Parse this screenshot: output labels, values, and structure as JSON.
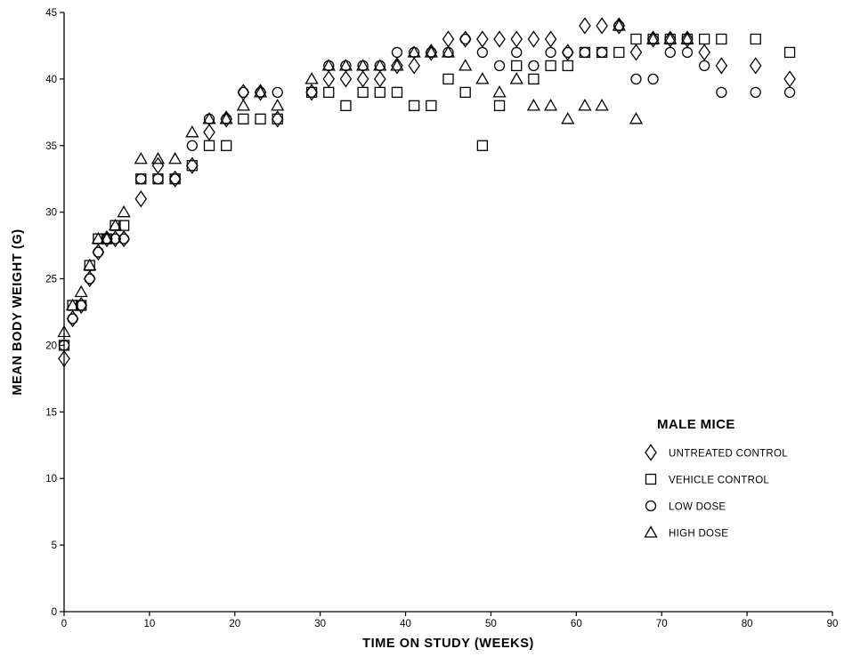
{
  "chart_data": {
    "type": "scatter",
    "title": "",
    "xlabel": "TIME ON STUDY (WEEKS)",
    "ylabel": "MEAN BODY WEIGHT (G)",
    "xlim": [
      0,
      90
    ],
    "ylim": [
      0,
      45
    ],
    "x_ticks": [
      0,
      10,
      20,
      30,
      40,
      50,
      60,
      70,
      80,
      90
    ],
    "y_ticks": [
      0,
      5,
      10,
      15,
      20,
      25,
      30,
      35,
      40,
      45
    ],
    "grid": false,
    "legend": {
      "title": "MALE MICE",
      "placement": "bottom-right"
    },
    "series": [
      {
        "name": "UNTREATED CONTROL",
        "marker": "diamond",
        "points": [
          [
            0,
            19
          ],
          [
            1,
            22
          ],
          [
            2,
            23
          ],
          [
            3,
            25
          ],
          [
            4,
            27
          ],
          [
            5,
            28
          ],
          [
            6,
            28
          ],
          [
            7,
            28
          ],
          [
            9,
            31
          ],
          [
            11,
            33.5
          ],
          [
            13,
            32.5
          ],
          [
            15,
            33.5
          ],
          [
            17,
            36
          ],
          [
            19,
            37
          ],
          [
            21,
            39
          ],
          [
            23,
            39
          ],
          [
            25,
            37
          ],
          [
            29,
            39
          ],
          [
            31,
            40
          ],
          [
            33,
            40
          ],
          [
            35,
            40
          ],
          [
            37,
            40
          ],
          [
            39,
            41
          ],
          [
            41,
            41
          ],
          [
            43,
            42
          ],
          [
            45,
            43
          ],
          [
            47,
            43
          ],
          [
            49,
            43
          ],
          [
            51,
            43
          ],
          [
            53,
            43
          ],
          [
            55,
            43
          ],
          [
            57,
            43
          ],
          [
            59,
            42
          ],
          [
            61,
            44
          ],
          [
            63,
            44
          ],
          [
            65,
            44
          ],
          [
            67,
            42
          ],
          [
            69,
            43
          ],
          [
            71,
            43
          ],
          [
            73,
            43
          ],
          [
            75,
            42
          ],
          [
            77,
            41
          ],
          [
            81,
            41
          ],
          [
            85,
            40
          ]
        ]
      },
      {
        "name": "VEHICLE CONTROL",
        "marker": "square",
        "points": [
          [
            0,
            20
          ],
          [
            1,
            23
          ],
          [
            2,
            23
          ],
          [
            3,
            26
          ],
          [
            4,
            28
          ],
          [
            5,
            28
          ],
          [
            6,
            29
          ],
          [
            7,
            29
          ],
          [
            9,
            32.5
          ],
          [
            11,
            32.5
          ],
          [
            13,
            32.5
          ],
          [
            15,
            33.5
          ],
          [
            17,
            35
          ],
          [
            19,
            35
          ],
          [
            21,
            37
          ],
          [
            23,
            37
          ],
          [
            25,
            37
          ],
          [
            29,
            39
          ],
          [
            31,
            39
          ],
          [
            33,
            38
          ],
          [
            35,
            39
          ],
          [
            37,
            39
          ],
          [
            39,
            39
          ],
          [
            41,
            38
          ],
          [
            43,
            38
          ],
          [
            45,
            40
          ],
          [
            47,
            39
          ],
          [
            49,
            35
          ],
          [
            51,
            38
          ],
          [
            53,
            41
          ],
          [
            55,
            40
          ],
          [
            57,
            41
          ],
          [
            59,
            41
          ],
          [
            61,
            42
          ],
          [
            63,
            42
          ],
          [
            65,
            42
          ],
          [
            67,
            43
          ],
          [
            69,
            43
          ],
          [
            71,
            43
          ],
          [
            73,
            43
          ],
          [
            75,
            43
          ],
          [
            77,
            43
          ],
          [
            81,
            43
          ],
          [
            85,
            42
          ]
        ]
      },
      {
        "name": "LOW DOSE",
        "marker": "circle",
        "points": [
          [
            0,
            20
          ],
          [
            1,
            22
          ],
          [
            2,
            23
          ],
          [
            3,
            25
          ],
          [
            4,
            27
          ],
          [
            5,
            28
          ],
          [
            6,
            28
          ],
          [
            7,
            28
          ],
          [
            9,
            32.5
          ],
          [
            11,
            32.5
          ],
          [
            13,
            32.5
          ],
          [
            15,
            35
          ],
          [
            17,
            37
          ],
          [
            19,
            37
          ],
          [
            21,
            39
          ],
          [
            23,
            39
          ],
          [
            25,
            39
          ],
          [
            29,
            39
          ],
          [
            31,
            41
          ],
          [
            33,
            41
          ],
          [
            35,
            41
          ],
          [
            37,
            41
          ],
          [
            39,
            42
          ],
          [
            41,
            42
          ],
          [
            43,
            42
          ],
          [
            45,
            42
          ],
          [
            47,
            43
          ],
          [
            49,
            42
          ],
          [
            51,
            41
          ],
          [
            53,
            42
          ],
          [
            55,
            41
          ],
          [
            57,
            42
          ],
          [
            59,
            42
          ],
          [
            61,
            42
          ],
          [
            63,
            42
          ],
          [
            65,
            44
          ],
          [
            67,
            40
          ],
          [
            69,
            40
          ],
          [
            71,
            42
          ],
          [
            73,
            42
          ],
          [
            75,
            41
          ],
          [
            77,
            39
          ],
          [
            81,
            39
          ],
          [
            85,
            39
          ]
        ]
      },
      {
        "name": "HIGH DOSE",
        "marker": "triangle",
        "points": [
          [
            0,
            21
          ],
          [
            1,
            23
          ],
          [
            2,
            24
          ],
          [
            3,
            26
          ],
          [
            4,
            28
          ],
          [
            5,
            28
          ],
          [
            6,
            29
          ],
          [
            7,
            30
          ],
          [
            9,
            34
          ],
          [
            11,
            34
          ],
          [
            13,
            34
          ],
          [
            15,
            36
          ],
          [
            17,
            37
          ],
          [
            19,
            37
          ],
          [
            21,
            38
          ],
          [
            23,
            39
          ],
          [
            25,
            38
          ],
          [
            29,
            40
          ],
          [
            31,
            41
          ],
          [
            33,
            41
          ],
          [
            35,
            41
          ],
          [
            37,
            41
          ],
          [
            39,
            41
          ],
          [
            41,
            42
          ],
          [
            43,
            42
          ],
          [
            45,
            42
          ],
          [
            47,
            41
          ],
          [
            49,
            40
          ],
          [
            51,
            39
          ],
          [
            53,
            40
          ],
          [
            55,
            38
          ],
          [
            57,
            38
          ],
          [
            59,
            37
          ],
          [
            61,
            38
          ],
          [
            63,
            38
          ],
          [
            65,
            44
          ],
          [
            67,
            37
          ],
          [
            69,
            43
          ],
          [
            71,
            43
          ],
          [
            73,
            43
          ]
        ]
      }
    ]
  }
}
